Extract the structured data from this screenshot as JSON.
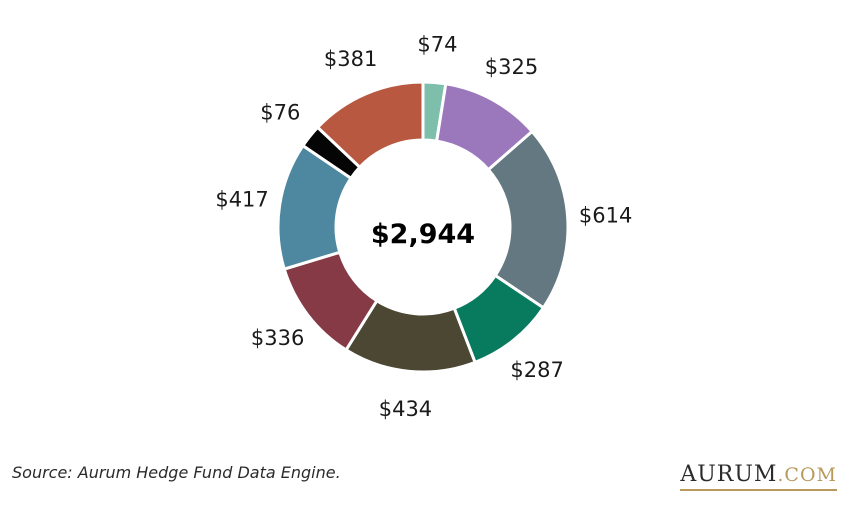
{
  "chart_data": {
    "type": "pie",
    "style": "donut",
    "center_label": "$2,944",
    "slices": [
      {
        "label": "$74",
        "value": 74,
        "color": "#7dbfab"
      },
      {
        "label": "$325",
        "value": 325,
        "color": "#9b78bb"
      },
      {
        "label": "$614",
        "value": 614,
        "color": "#637880"
      },
      {
        "label": "$287",
        "value": 287,
        "color": "#087a5e"
      },
      {
        "label": "$434",
        "value": 434,
        "color": "#4c4732"
      },
      {
        "label": "$336",
        "value": 336,
        "color": "#853a46"
      },
      {
        "label": "$417",
        "value": 417,
        "color": "#4e87a0"
      },
      {
        "label": "$76",
        "value": 76,
        "color": "#050505"
      },
      {
        "label": "$381",
        "value": 381,
        "color": "#b85840"
      }
    ]
  },
  "footer": {
    "source": "Source: Aurum Hedge Fund Data Engine.",
    "brand_name": "AURUM",
    "brand_domain": ".COM"
  }
}
